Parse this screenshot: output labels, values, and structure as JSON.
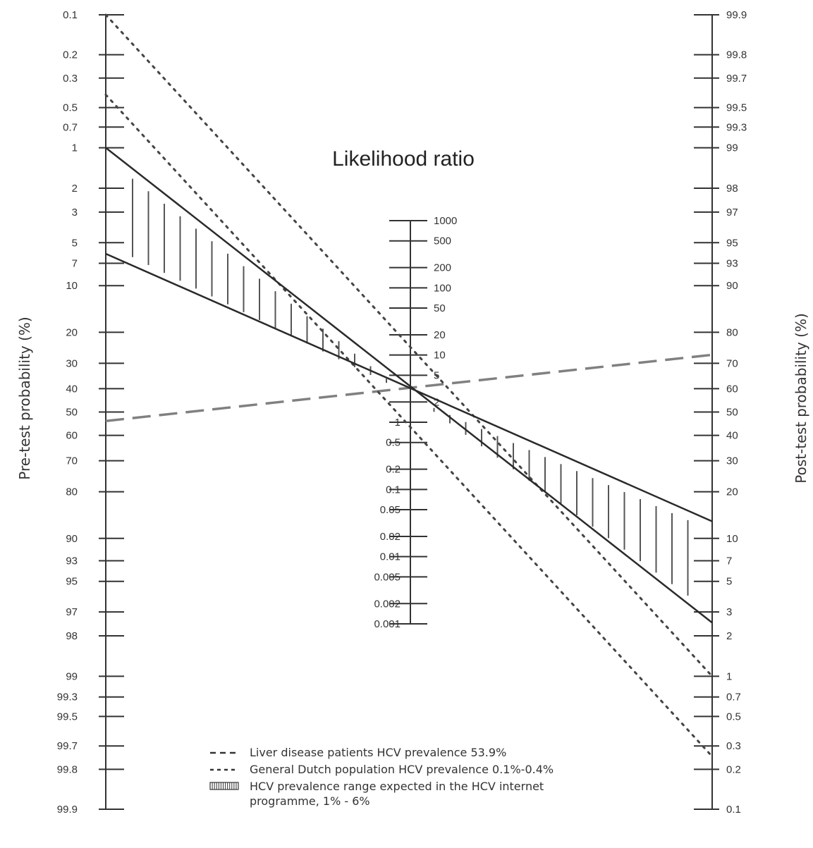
{
  "chart_data": {
    "type": "nomogram",
    "title": "Likelihood ratio",
    "left_axis": {
      "label": "Pre-test probability (%)",
      "ticks": [
        "0.1",
        "0.2",
        "0.3",
        "0.5",
        "0.7",
        "1",
        "2",
        "3",
        "5",
        "7",
        "10",
        "20",
        "30",
        "40",
        "50",
        "60",
        "70",
        "80",
        "90",
        "93",
        "95",
        "97",
        "98",
        "99",
        "99.3",
        "99.5",
        "99.7",
        "99.8",
        "99.9"
      ]
    },
    "center_axis": {
      "label": "Likelihood ratio",
      "ticks": [
        "1000",
        "500",
        "200",
        "100",
        "50",
        "20",
        "10",
        "5",
        "2",
        "1",
        "0.5",
        "0.2",
        "0.1",
        "0.05",
        "0.02",
        "0.01",
        "0.005",
        "0.002",
        "0.001"
      ]
    },
    "right_axis": {
      "label": "Post-test probability (%)",
      "ticks": [
        "99.9",
        "99.8",
        "99.7",
        "99.5",
        "99.3",
        "99",
        "98",
        "97",
        "95",
        "93",
        "90",
        "80",
        "70",
        "60",
        "50",
        "40",
        "30",
        "20",
        "10",
        "7",
        "5",
        "3",
        "2",
        "1",
        "0.7",
        "0.5",
        "0.3",
        "0.2",
        "0.1"
      ]
    },
    "lines": [
      {
        "series": "Liver disease patients HCV prevalence 53.9%",
        "style": "dashed",
        "pre_test": 53.9,
        "post_test": 73
      },
      {
        "series": "General Dutch population HCV prevalence 0.1%-0.4%",
        "style": "dotted",
        "pre_test": 0.1,
        "post_test": 1
      },
      {
        "series": "General Dutch population HCV prevalence 0.1%-0.4%",
        "style": "dotted",
        "pre_test": 0.4,
        "post_test": 0.25
      },
      {
        "series": "HCV prevalence range expected in the HCV internet programme, 1% - 6%",
        "style": "solid",
        "pre_test": 1,
        "post_test": 2.5
      },
      {
        "series": "HCV prevalence range expected in the HCV internet programme, 1% - 6%",
        "style": "solid",
        "pre_test": 6,
        "post_test": 13
      }
    ],
    "legend": [
      {
        "style": "dashed",
        "label": "Liver disease patients HCV prevalence 53.9%"
      },
      {
        "style": "dotted",
        "label": "General Dutch population HCV prevalence 0.1%-0.4%"
      },
      {
        "style": "hatched",
        "label": "HCV prevalence range expected in the HCV internet programme, 1% - 6%"
      }
    ],
    "legend_placement": "bottom-center",
    "colors": {
      "axis": "#333333",
      "solid_line": "#2a2a2a",
      "dashed_line": "#808080",
      "dotted_line": "#444444",
      "hatch": "#555555"
    }
  }
}
